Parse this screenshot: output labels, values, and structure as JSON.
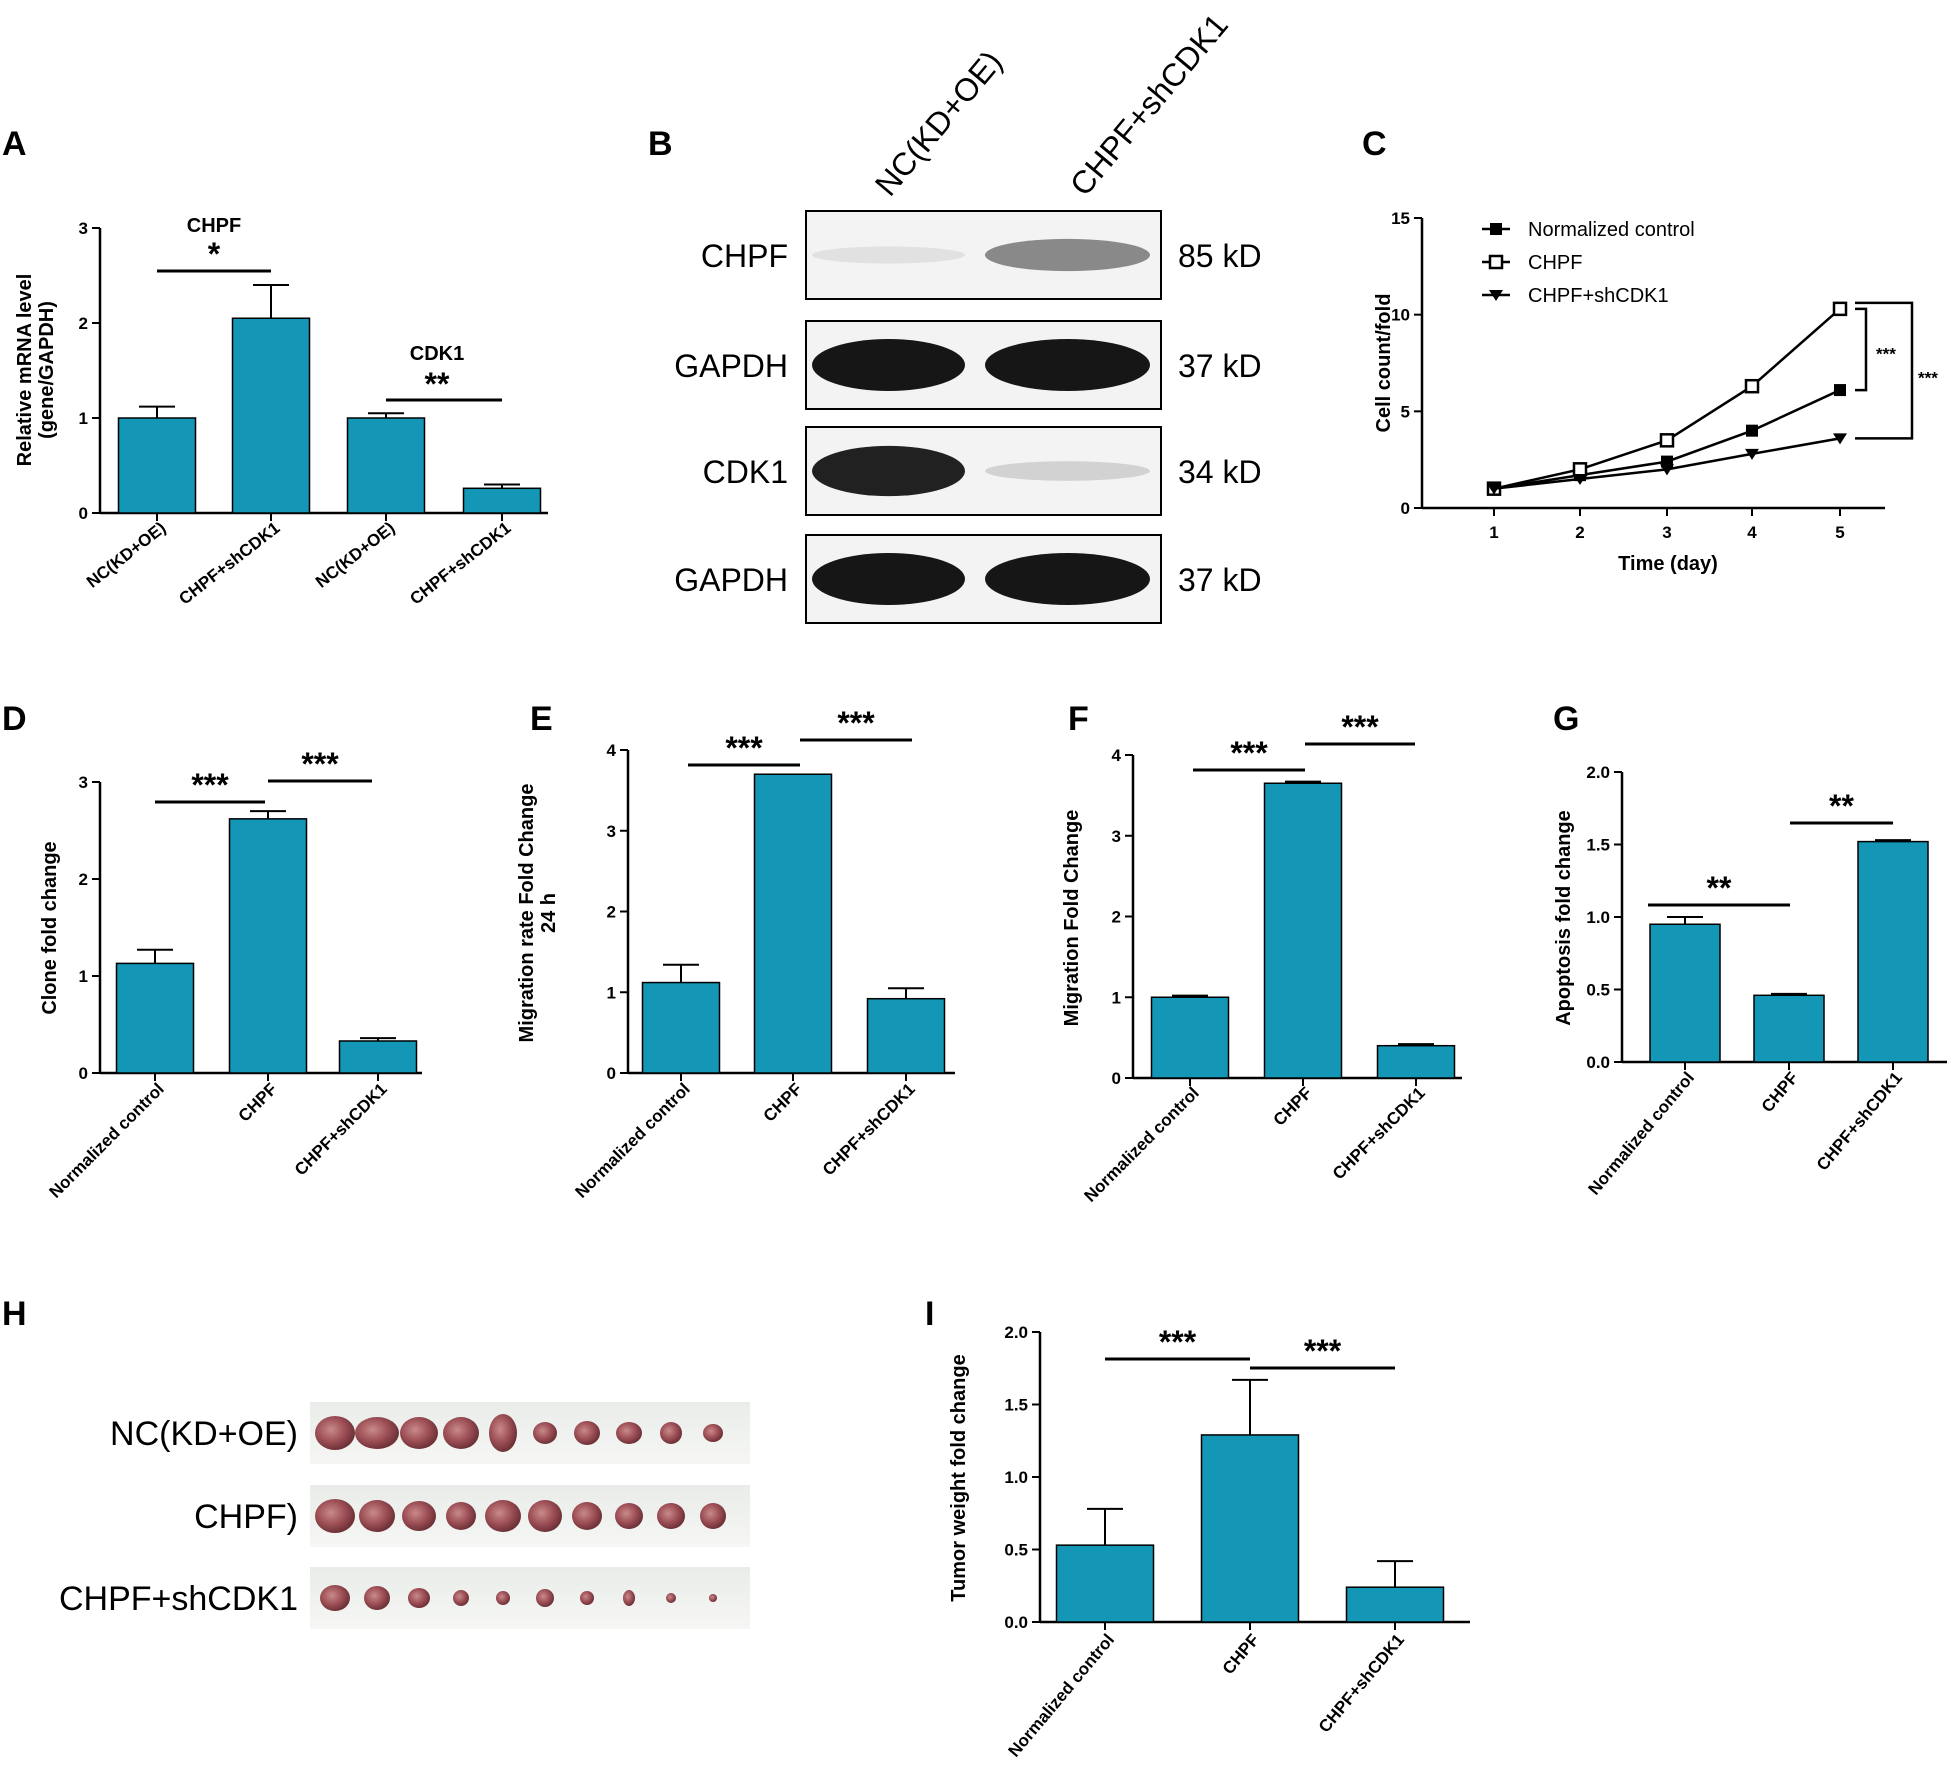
{
  "colors": {
    "bar": "#1497b6",
    "axis": "#000000"
  },
  "panels": {
    "A": "A",
    "B": "B",
    "C": "C",
    "D": "D",
    "E": "E",
    "F": "F",
    "G": "G",
    "H": "H",
    "I": "I"
  },
  "chart_data": [
    {
      "id": "A",
      "type": "bar",
      "ylabel": "Relative mRNA level\n(gene/GAPDH)",
      "ylim": [
        0,
        3
      ],
      "yticks": [
        "0",
        "1",
        "2",
        "3"
      ],
      "categories": [
        "NC(KD+OE)",
        "CHPF+shCDK1",
        "NC(KD+OE)",
        "CHPF+shCDK1"
      ],
      "values": [
        1.0,
        2.05,
        1.0,
        0.26
      ],
      "errors": [
        0.12,
        0.35,
        0.05,
        0.04
      ],
      "group_labels": [
        {
          "text": "CHPF",
          "star": "*"
        },
        {
          "text": "CDK1",
          "star": "**"
        }
      ]
    },
    {
      "id": "C",
      "type": "line",
      "xlabel": "Time (day)",
      "ylabel": "Cell count/fold",
      "ylim": [
        0,
        15
      ],
      "yticks": [
        "0",
        "5",
        "10",
        "15"
      ],
      "x": [
        1,
        2,
        3,
        4,
        5
      ],
      "xticks": [
        "1",
        "2",
        "3",
        "4",
        "5"
      ],
      "series": [
        {
          "name": "Normalized control",
          "marker": "filled-square",
          "values": [
            1.0,
            1.7,
            2.4,
            4.0,
            6.1
          ]
        },
        {
          "name": "CHPF",
          "marker": "open-square",
          "values": [
            1.0,
            2.0,
            3.5,
            6.3,
            10.3
          ]
        },
        {
          "name": "CHPF+shCDK1",
          "marker": "filled-triangle",
          "values": [
            1.0,
            1.5,
            2.0,
            2.8,
            3.6
          ]
        }
      ],
      "annotations": [
        "***",
        "***"
      ]
    },
    {
      "id": "D",
      "type": "bar",
      "ylabel": "Clone fold change",
      "ylim": [
        0,
        3
      ],
      "yticks": [
        "0",
        "1",
        "2",
        "3"
      ],
      "categories": [
        "Normalized control",
        "CHPF",
        "CHPF+shCDK1"
      ],
      "values": [
        1.13,
        2.62,
        0.33
      ],
      "errors": [
        0.14,
        0.08,
        0.03
      ],
      "sig": [
        "***",
        "***"
      ]
    },
    {
      "id": "E",
      "type": "bar",
      "ylabel": "Migration rate Fold Change\n24 h",
      "ylim": [
        0,
        4
      ],
      "yticks": [
        "0",
        "1",
        "2",
        "3",
        "4"
      ],
      "categories": [
        "Normalized control",
        "CHPF",
        "CHPF+shCDK1"
      ],
      "values": [
        1.12,
        3.7,
        0.92
      ],
      "errors": [
        0.22,
        0.0,
        0.13
      ],
      "sig": [
        "***",
        "***"
      ]
    },
    {
      "id": "F",
      "type": "bar",
      "ylabel": "Migration Fold Change",
      "ylim": [
        0,
        4
      ],
      "yticks": [
        "0",
        "1",
        "2",
        "3",
        "4"
      ],
      "categories": [
        "Normalized control",
        "CHPF",
        "CHPF+shCDK1"
      ],
      "values": [
        1.0,
        3.65,
        0.4
      ],
      "errors": [
        0.02,
        0.02,
        0.02
      ],
      "sig": [
        "***",
        "***"
      ]
    },
    {
      "id": "G",
      "type": "bar",
      "ylabel": "Apoptosis fold change",
      "ylim": [
        0,
        2
      ],
      "yticks": [
        "0.0",
        "0.5",
        "1.0",
        "1.5",
        "2.0"
      ],
      "categories": [
        "Normalized control",
        "CHPF",
        "CHPF+shCDK1"
      ],
      "values": [
        0.95,
        0.46,
        1.52
      ],
      "errors": [
        0.05,
        0.01,
        0.01
      ],
      "sig": [
        "**",
        "**"
      ]
    },
    {
      "id": "I",
      "type": "bar",
      "ylabel": "Tumor weight fold change",
      "ylim": [
        0,
        2
      ],
      "yticks": [
        "0.0",
        "0.5",
        "1.0",
        "1.5",
        "2.0"
      ],
      "categories": [
        "Normalized control",
        "CHPF",
        "CHPF+shCDK1"
      ],
      "values": [
        0.53,
        1.29,
        0.24
      ],
      "errors": [
        0.25,
        0.38,
        0.18
      ],
      "sig": [
        "***",
        "***"
      ]
    }
  ],
  "western_blot": {
    "lanes": [
      "NC(KD+OE)",
      "CHPF+shCDK1"
    ],
    "rows": [
      {
        "protein": "CHPF",
        "size": "85 kD",
        "intensity": [
          0.03,
          0.45
        ]
      },
      {
        "protein": "GAPDH",
        "size": "37 kD",
        "intensity": [
          1.0,
          1.0
        ]
      },
      {
        "protein": "CDK1",
        "size": "34 kD",
        "intensity": [
          0.95,
          0.1
        ]
      },
      {
        "protein": "GAPDH",
        "size": "37 kD",
        "intensity": [
          1.0,
          1.0
        ]
      }
    ]
  },
  "tumor_photo": {
    "rows": [
      {
        "label": "NC(KD+OE)",
        "count": 10
      },
      {
        "label": "CHPF)",
        "count": 10
      },
      {
        "label": "CHPF+shCDK1",
        "count": 10
      }
    ]
  }
}
